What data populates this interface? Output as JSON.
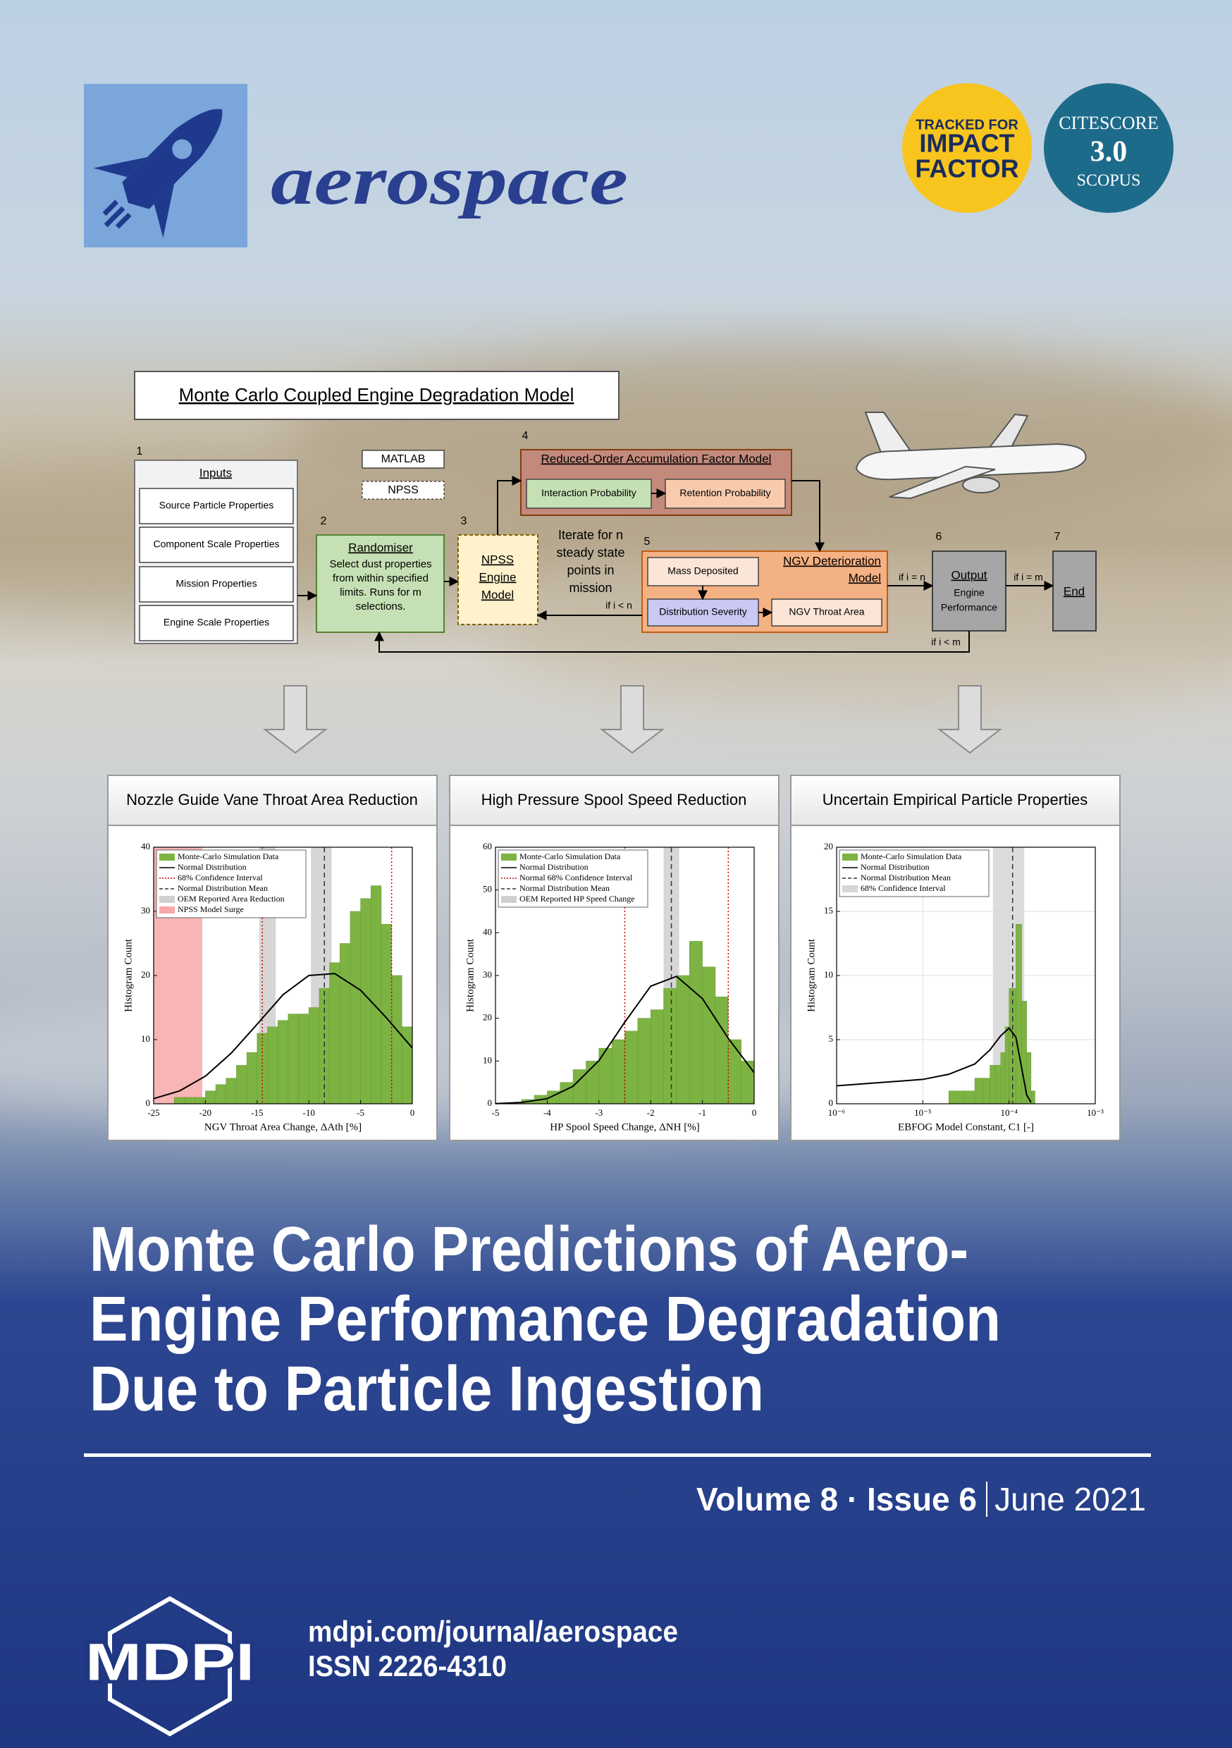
{
  "header": {
    "journal": "aerospace",
    "impact_badge": [
      "TRACKED FOR",
      "IMPACT",
      "FACTOR"
    ],
    "citescore_badge": [
      "CITESCORE",
      "3.0",
      "SCOPUS"
    ]
  },
  "diagram": {
    "title": "Monte Carlo Coupled Engine Degradation Model",
    "legend": [
      "MATLAB",
      "NPSS"
    ],
    "nodes": [
      {
        "number": "1",
        "label": [
          "Inputs"
        ],
        "items": [
          "Source Particle Properties",
          "Component Scale Properties",
          "Mission Properties",
          "Engine Scale Properties"
        ]
      },
      {
        "number": "2",
        "label": [
          "Randomiser"
        ],
        "text": [
          "Select dust properties",
          "from within specified",
          "limits. Runs for m",
          "selections."
        ]
      },
      {
        "number": "3",
        "label": [
          "NPSS",
          "Engine",
          "Model"
        ]
      },
      {
        "number": "4",
        "label": [
          "Reduced-Order Accumulation Factor Model"
        ],
        "items": [
          "Interaction Probability",
          "Retention Probability"
        ]
      },
      {
        "number": "5",
        "label": [
          "NGV Deterioration",
          "Model"
        ],
        "items": [
          "Mass Deposited",
          "Distribution Severity",
          "NGV Throat Area"
        ]
      },
      {
        "number": "6",
        "label": [
          "Output"
        ],
        "text": [
          "Engine",
          "Performance"
        ]
      },
      {
        "number": "7",
        "label": [
          "End"
        ]
      }
    ],
    "note": [
      "Iterate for n",
      "steady state",
      "points in",
      "mission"
    ],
    "edges": [
      "if i < n",
      "if i = n",
      "if i = m",
      "if i < m"
    ]
  },
  "chart_data": [
    {
      "type": "histogram",
      "title": "Nozzle Guide Vane Throat Area Reduction",
      "xlabel": "NGV Throat Area Change, ΔAth [%]",
      "ylabel": "Histogram Count",
      "bins": [
        -25,
        -24,
        -23,
        -22,
        -21,
        -20,
        -19,
        -18,
        -17,
        -16,
        -15,
        -14,
        -13,
        -12,
        -11,
        -10,
        -9,
        -8,
        -7,
        -6,
        -5,
        -4,
        -3,
        -2,
        -1,
        0
      ],
      "series": [
        {
          "name": "Monte-Carlo Simulation Data",
          "color": "#7cb342",
          "values": [
            0,
            0,
            1,
            1,
            1,
            2,
            3,
            4,
            6,
            8,
            11,
            12,
            13,
            14,
            14,
            15,
            18,
            22,
            25,
            30,
            32,
            34,
            28,
            20,
            12
          ]
        }
      ],
      "line": {
        "name": "Normal Distribution",
        "color": "#000000",
        "x": [
          -25,
          -22.5,
          -20,
          -17.5,
          -15,
          -12.5,
          -10,
          -7.5,
          -5,
          -2.5,
          0
        ],
        "values": [
          0.8,
          2,
          4.3,
          7.9,
          12.4,
          17,
          20,
          20.3,
          17.7,
          13.4,
          8.7
        ]
      },
      "vlines": [
        {
          "name": "68% Confidence Interval",
          "color": "#cc0000",
          "style": "dotted",
          "x": [
            -14.5,
            -2
          ]
        },
        {
          "name": "Normal Distribution Mean",
          "color": "#333333",
          "style": "dashed",
          "x": [
            -8.5
          ]
        }
      ],
      "bands": [
        {
          "name": "OEM Reported Area Reduction",
          "color": "#cfcfcf",
          "ranges": [
            [
              -14.8,
              -13.2
            ],
            [
              -9.8,
              -7.8
            ]
          ]
        },
        {
          "name": "NPSS Model Surge",
          "color": "#f7a8a8",
          "ranges": [
            [
              -25,
              -20.3
            ]
          ]
        }
      ],
      "xlim": [
        -25,
        0
      ],
      "xticks": [
        -25,
        -20,
        -15,
        -10,
        -5,
        0
      ],
      "ylim": [
        0,
        40
      ],
      "yticks": [
        0,
        10,
        20,
        30,
        40
      ],
      "grid": false
    },
    {
      "type": "histogram",
      "title": "High Pressure Spool Speed Reduction",
      "xlabel": "HP Spool Speed Change, ΔNH [%]",
      "ylabel": "Histogram Count",
      "bins": [
        -5,
        -4.75,
        -4.5,
        -4.25,
        -4,
        -3.75,
        -3.5,
        -3.25,
        -3,
        -2.75,
        -2.5,
        -2.25,
        -2,
        -1.75,
        -1.5,
        -1.25,
        -1,
        -0.75,
        -0.5,
        -0.25,
        0
      ],
      "series": [
        {
          "name": "Monte-Carlo Simulation Data",
          "color": "#7cb342",
          "values": [
            0,
            0,
            1,
            2,
            3,
            5,
            8,
            10,
            13,
            15,
            17,
            20,
            22,
            27,
            30,
            38,
            32,
            25,
            15,
            10
          ]
        }
      ],
      "line": {
        "name": "Normal Distribution",
        "color": "#000000",
        "x": [
          -5,
          -4.5,
          -4,
          -3.5,
          -3,
          -2.5,
          -2,
          -1.5,
          -1,
          -0.5,
          0
        ],
        "values": [
          0.05,
          0.3,
          1.2,
          4.1,
          10.1,
          19.1,
          27.5,
          29.8,
          24.6,
          15.3,
          7.3
        ]
      },
      "vlines": [
        {
          "name": "Normal 68% Confidence Interval",
          "color": "#cc0000",
          "style": "dotted",
          "x": [
            -2.5,
            -0.5
          ]
        },
        {
          "name": "Normal Distribution Mean",
          "color": "#333333",
          "style": "dashed",
          "x": [
            -1.6
          ]
        }
      ],
      "bands": [
        {
          "name": "OEM Reported HP Speed Change",
          "color": "#cfcfcf",
          "ranges": [
            [
              -1.75,
              -1.45
            ]
          ]
        }
      ],
      "xlim": [
        -5,
        0
      ],
      "xticks": [
        -5,
        -4,
        -3,
        -2,
        -1,
        0
      ],
      "ylim": [
        0,
        60
      ],
      "yticks": [
        0,
        10,
        20,
        30,
        40,
        50,
        60
      ],
      "grid": false
    },
    {
      "type": "histogram",
      "title": "Uncertain Empirical Particle Properties",
      "xlabel": "EBFOG Model Constant, C1 [-]",
      "ylabel": "Histogram Count",
      "xscale": "log",
      "bins": [
        2e-05,
        3e-05,
        4e-05,
        5e-05,
        6e-05,
        7e-05,
        8e-05,
        9e-05,
        0.0001,
        0.00012,
        0.00014,
        0.00016,
        0.00018,
        0.0002
      ],
      "series": [
        {
          "name": "Monte-Carlo Simulation Data",
          "color": "#7cb342",
          "values": [
            1,
            1,
            2,
            2,
            3,
            3,
            4,
            6,
            9,
            14,
            8,
            4,
            1
          ]
        }
      ],
      "line": {
        "name": "Normal Distribution",
        "color": "#000000",
        "x": [
          1e-06,
          1e-05,
          2e-05,
          4e-05,
          6e-05,
          8e-05,
          0.0001,
          0.00012,
          0.00014,
          0.00016,
          0.00018
        ],
        "values": [
          1.4,
          1.9,
          2.3,
          3.1,
          4.2,
          5.3,
          5.9,
          5.2,
          2.8,
          0.7,
          0.1
        ]
      },
      "vlines": [
        {
          "name": "Normal Distribution Mean",
          "color": "#333333",
          "style": "dashed",
          "x": [
            0.00011
          ]
        }
      ],
      "bands": [
        {
          "name": "68% Confidence Interval",
          "color": "#d6d6d6",
          "ranges": [
            [
              6.5e-05,
              0.00015
            ]
          ]
        }
      ],
      "xlim": [
        1e-06,
        0.001
      ],
      "xticks": [
        {
          "value": 1e-06,
          "label": "10⁻⁶"
        },
        {
          "value": 1e-05,
          "label": "10⁻⁵"
        },
        {
          "value": 0.0001,
          "label": "10⁻⁴"
        },
        {
          "value": 0.001,
          "label": "10⁻³"
        }
      ],
      "ylim": [
        0,
        20
      ],
      "yticks": [
        0,
        5,
        10,
        15,
        20
      ],
      "grid": true
    }
  ],
  "article_title": [
    "Monte Carlo Predictions of Aero-",
    "Engine Performance Degradation",
    "Due to Particle Ingestion"
  ],
  "issue": {
    "volume": "Volume 8 · Issue 6",
    "date": "June 2021"
  },
  "footer": {
    "publisher": "MDPI",
    "url": "mdpi.com/journal/aerospace",
    "issn": "ISSN 2226-4310"
  }
}
